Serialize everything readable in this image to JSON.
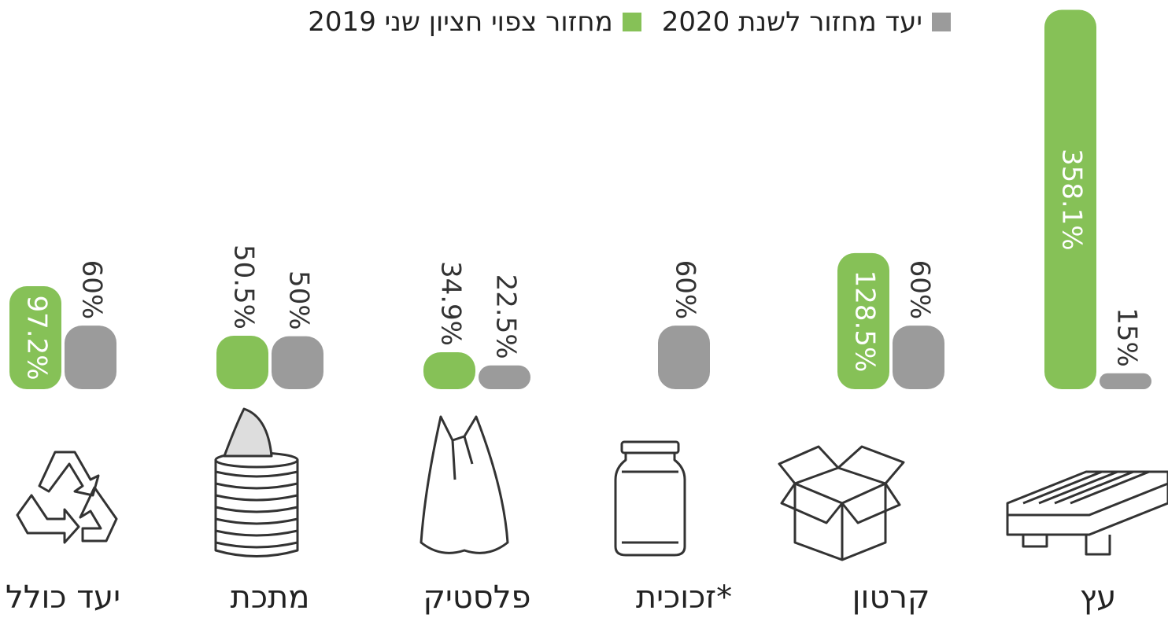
{
  "chart_data": {
    "type": "bar",
    "categories": [
      "עץ",
      "קרטון",
      "זכוכית*",
      "פלסטיק",
      "מתכת",
      "יעד כולל"
    ],
    "series": [
      {
        "name": "יעד מחזור לשנת 2020",
        "color": "#9b9b9b",
        "values": [
          15,
          60,
          60,
          22.5,
          50,
          60
        ],
        "value_labels": [
          "15%",
          "60%",
          "60%",
          "22.5%",
          "50%",
          "60%"
        ]
      },
      {
        "name": "מחזור צפוי חציון שני 2019",
        "color": "#86c157",
        "values": [
          358.1,
          128.5,
          null,
          34.9,
          50.5,
          97.2
        ],
        "value_labels": [
          "358.1%",
          "128.5%",
          null,
          "34.9%",
          "50.5%",
          "97.2%"
        ]
      }
    ],
    "ylim": [
      0,
      360
    ]
  }
}
